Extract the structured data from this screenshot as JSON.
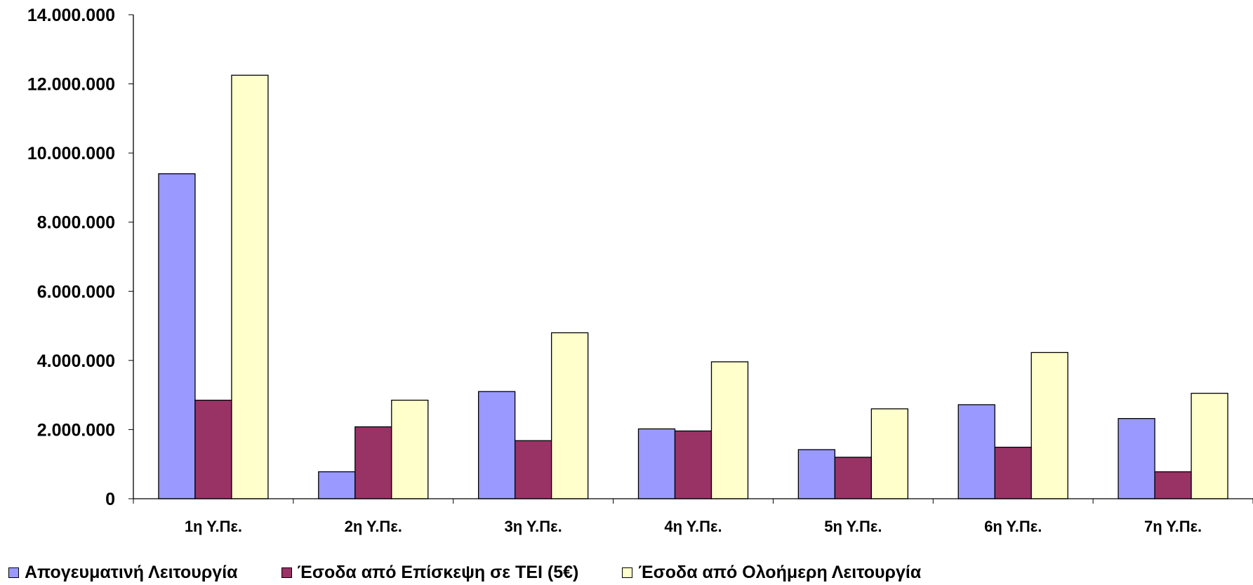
{
  "chart_data": {
    "type": "bar",
    "categories": [
      "1η Υ.Πε.",
      "2η Υ.Πε.",
      "3η Υ.Πε.",
      "4η Υ.Πε.",
      "5η Υ.Πε.",
      "6η Υ.Πε.",
      "7η Υ.Πε."
    ],
    "series": [
      {
        "name": "Απογευματινή Λειτουργία",
        "color": "#9999ff",
        "values": [
          9400000,
          780000,
          3100000,
          2020000,
          1420000,
          2720000,
          2320000
        ]
      },
      {
        "name": "Έσοδα από Επίσκεψη σε ΤΕΙ (5€)",
        "color": "#993366",
        "values": [
          2850000,
          2080000,
          1680000,
          1960000,
          1200000,
          1490000,
          780000
        ]
      },
      {
        "name": "Έσοδα από Ολοήμερη Λειτουργία",
        "color": "#ffffcc",
        "values": [
          12250000,
          2850000,
          4800000,
          3960000,
          2600000,
          4230000,
          3050000
        ]
      }
    ],
    "yticks": [
      "0",
      "2.000.000",
      "4.000.000",
      "6.000.000",
      "8.000.000",
      "10.000.000",
      "12.000.000",
      "14.000.000"
    ],
    "ylim": [
      0,
      14000000
    ],
    "grid": false,
    "legend_position": "bottom"
  }
}
